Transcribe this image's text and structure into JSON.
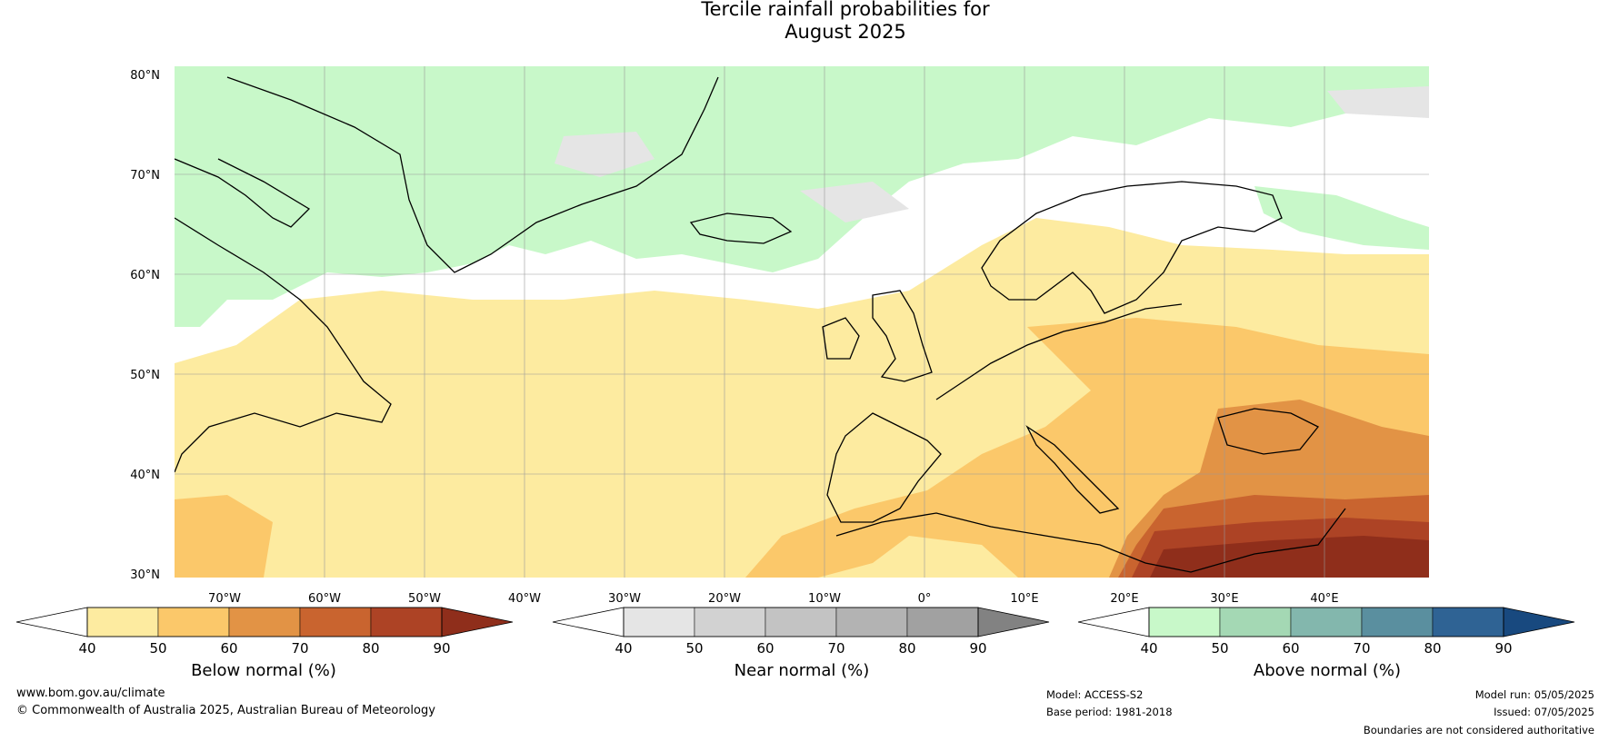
{
  "title": {
    "line1": "Tercile rainfall probabilities for",
    "line2": "August 2025"
  },
  "map": {
    "lat_ticks": [
      "80°N",
      "70°N",
      "60°N",
      "50°N",
      "40°N",
      "30°N"
    ],
    "lon_ticks": [
      "70°W",
      "60°W",
      "50°W",
      "40°W",
      "30°W",
      "20°W",
      "10°W",
      "0°",
      "10°E",
      "20°E",
      "30°E",
      "40°E"
    ],
    "colors": {
      "below": [
        "#fdeba0",
        "#fbc86a",
        "#e29345",
        "#c9642f",
        "#ad4325",
        "#8f2e1b"
      ],
      "near": [
        "#e5e5e5",
        "#d2d2d2",
        "#c3c3c3",
        "#b3b3b3",
        "#a1a1a1",
        "#828282"
      ],
      "above": [
        "#c8f8c9",
        "#a4d8b4",
        "#83b7ad",
        "#5a8f9f",
        "#2f6394",
        "#18497f"
      ]
    }
  },
  "colorbars": [
    {
      "key": "below",
      "title": "Below normal (%)",
      "ticks": [
        "40",
        "50",
        "60",
        "70",
        "80",
        "90"
      ]
    },
    {
      "key": "near",
      "title": "Near normal (%)",
      "ticks": [
        "40",
        "50",
        "60",
        "70",
        "80",
        "90"
      ]
    },
    {
      "key": "above",
      "title": "Above normal (%)",
      "ticks": [
        "40",
        "50",
        "60",
        "70",
        "80",
        "90"
      ]
    }
  ],
  "footer": {
    "website": "www.bom.gov.au/climate",
    "copyright": "© Commonwealth of Australia 2025, Australian Bureau of Meteorology",
    "model": "Model: ACCESS-S2",
    "base_period": "Base period: 1981-2018",
    "model_run": "Model run: 05/05/2025",
    "issued": "Issued: 07/05/2025",
    "disclaimer": "Boundaries are not considered authoritative"
  }
}
